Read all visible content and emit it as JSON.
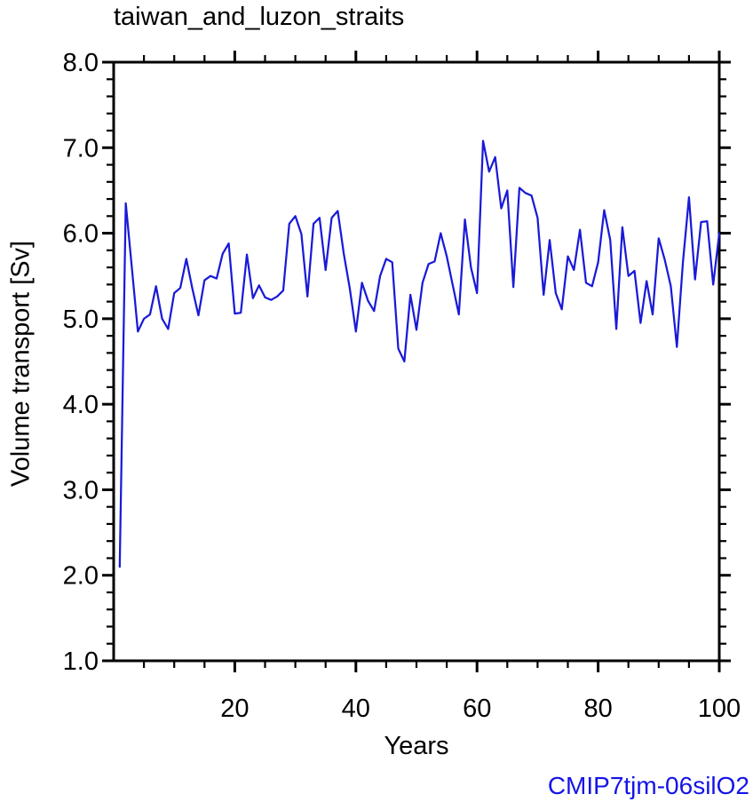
{
  "chart": {
    "title": "taiwan_and_luzon_straits",
    "xlabel": "Years",
    "ylabel": "Volume transport [Sv]",
    "annotation": "CMIP7tjm-06silO2",
    "colors": {
      "line": "#1a1ad8",
      "annotation": "#1414e8",
      "axis": "#000000",
      "background": "#ffffff",
      "text": "#000000"
    }
  },
  "chart_data": {
    "type": "line",
    "title": "taiwan_and_luzon_straits",
    "xlabel": "Years",
    "ylabel": "Volume transport [Sv]",
    "series_name": "volume-transport",
    "grid": false,
    "legend": null,
    "xlim": [
      0,
      100
    ],
    "ylim": [
      1.0,
      8.0
    ],
    "xticks_major": [
      20,
      40,
      60,
      80,
      100
    ],
    "xtick_labels": [
      "20",
      "40",
      "60",
      "80",
      "100"
    ],
    "xticks_minor_step": 5,
    "yticks_major": [
      8.0,
      7.0,
      6.0,
      5.0,
      4.0,
      3.0,
      2.0,
      1.0
    ],
    "ytick_labels": [
      "8.0",
      "7.0",
      "6.0",
      "5.0",
      "4.0",
      "3.0",
      "2.0",
      "1.0"
    ],
    "yticks_minor_step": 0.2,
    "years": [
      1,
      2,
      3,
      4,
      5,
      6,
      7,
      8,
      9,
      10,
      11,
      12,
      13,
      14,
      15,
      16,
      17,
      18,
      19,
      20,
      21,
      22,
      23,
      24,
      25,
      26,
      27,
      28,
      29,
      30,
      31,
      32,
      33,
      34,
      35,
      36,
      37,
      38,
      39,
      40,
      41,
      42,
      43,
      44,
      45,
      46,
      47,
      48,
      49,
      50,
      51,
      52,
      53,
      54,
      55,
      56,
      57,
      58,
      59,
      60,
      61,
      62,
      63,
      64,
      65,
      66,
      67,
      68,
      69,
      70,
      71,
      72,
      73,
      74,
      75,
      76,
      77,
      78,
      79,
      80,
      81,
      82,
      83,
      84,
      85,
      86,
      87,
      88,
      89,
      90,
      91,
      92,
      93,
      94,
      95,
      96,
      97,
      98,
      99,
      100
    ],
    "values": [
      2.1,
      6.35,
      5.6,
      4.85,
      5.0,
      5.05,
      5.38,
      5.0,
      4.88,
      5.3,
      5.36,
      5.7,
      5.35,
      5.04,
      5.45,
      5.5,
      5.47,
      5.76,
      5.88,
      5.06,
      5.07,
      5.75,
      5.24,
      5.39,
      5.25,
      5.22,
      5.26,
      5.33,
      6.11,
      6.2,
      5.99,
      5.26,
      6.11,
      6.18,
      5.57,
      6.18,
      6.26,
      5.76,
      5.35,
      4.85,
      5.42,
      5.21,
      5.09,
      5.5,
      5.7,
      5.66,
      4.65,
      4.5,
      5.28,
      4.87,
      5.42,
      5.64,
      5.67,
      6.0,
      5.73,
      5.39,
      5.05,
      6.16,
      5.6,
      5.3,
      7.08,
      6.72,
      6.89,
      6.29,
      6.5,
      5.37,
      6.53,
      6.47,
      6.44,
      6.18,
      5.28,
      5.92,
      5.3,
      5.11,
      5.73,
      5.57,
      6.04,
      5.42,
      5.38,
      5.66,
      6.27,
      5.92,
      4.88,
      6.07,
      5.5,
      5.56,
      4.95,
      5.44,
      5.05,
      5.94,
      5.69,
      5.38,
      4.67,
      5.66,
      6.42,
      5.46,
      6.13,
      6.14,
      5.4,
      6.0
    ]
  }
}
